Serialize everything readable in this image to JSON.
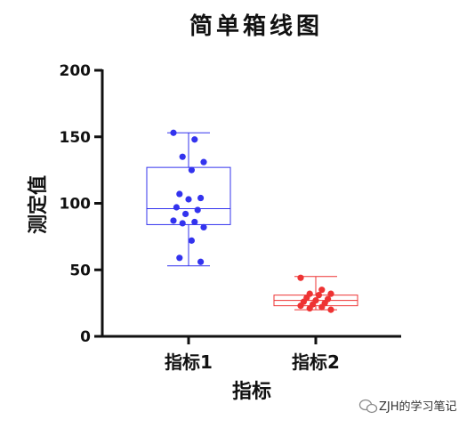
{
  "chart_data": {
    "type": "box",
    "title": "简单箱线图",
    "xlabel": "指标",
    "ylabel": "测定值",
    "ylim": [
      0,
      200
    ],
    "yticks": [
      0,
      50,
      100,
      150,
      200
    ],
    "categories": [
      "指标1",
      "指标2"
    ],
    "series": [
      {
        "category": "指标1",
        "color": "#3333ee",
        "box": {
          "min": 53,
          "q1": 84,
          "median": 96,
          "q3": 127,
          "max": 153
        },
        "points": [
          153,
          148,
          135,
          131,
          125,
          107,
          104,
          103,
          97,
          95,
          92,
          87,
          86,
          85,
          82,
          72,
          59,
          56
        ]
      },
      {
        "category": "指标2",
        "color": "#ee3333",
        "box": {
          "min": 20,
          "q1": 23,
          "median": 27,
          "q3": 31,
          "max": 45
        },
        "points": [
          44,
          35,
          32,
          32,
          31,
          29,
          28,
          27,
          26,
          25,
          24,
          23,
          22,
          21,
          20
        ]
      }
    ]
  },
  "watermark": {
    "text": "ZJH的学习笔记",
    "icon": "wechat-icon"
  }
}
